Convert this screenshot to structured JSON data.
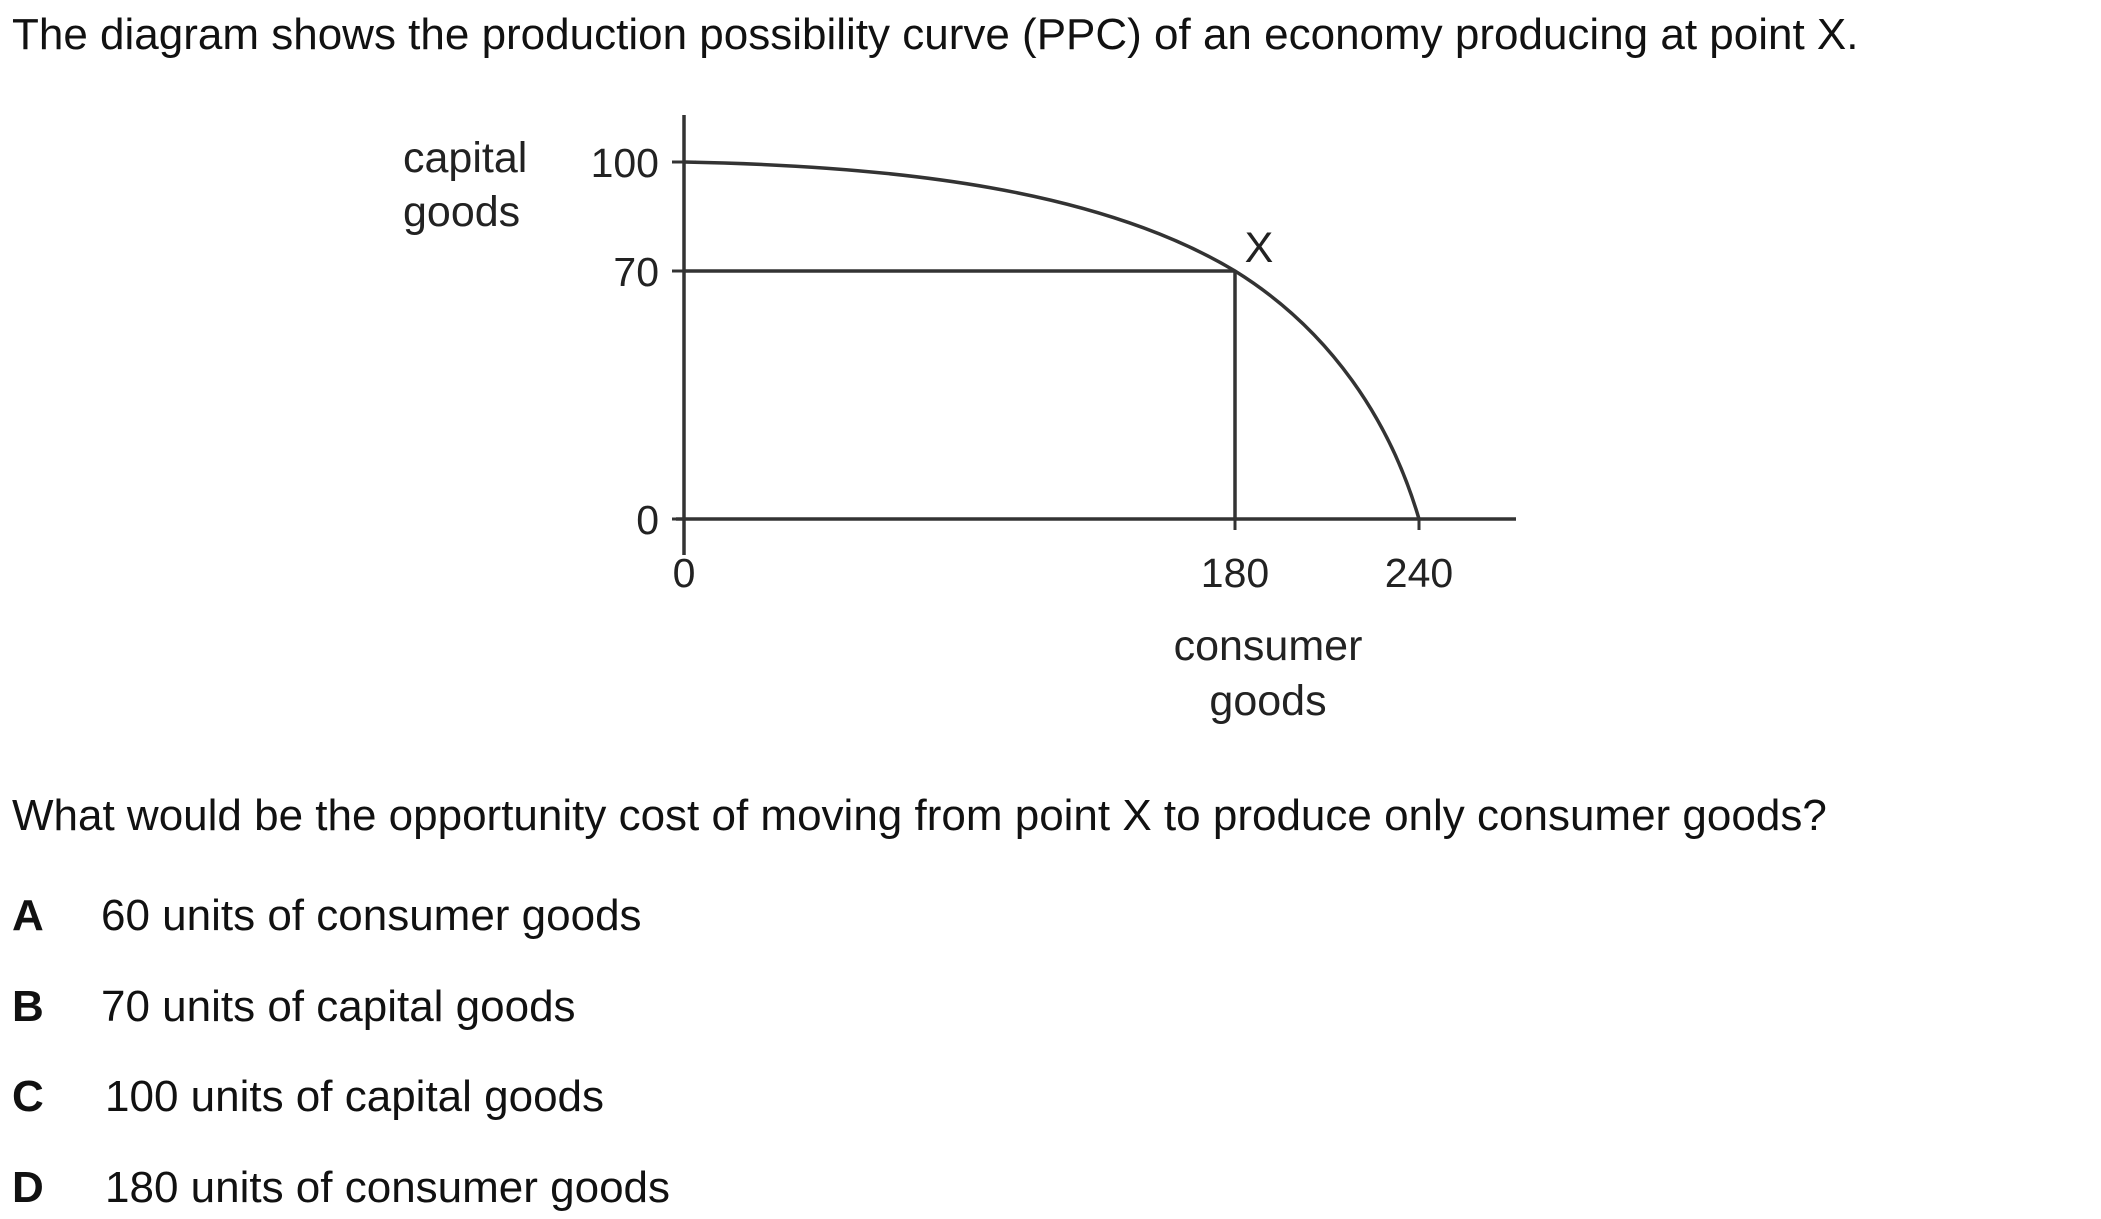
{
  "intro": "The diagram shows the production possibility curve (PPC) of an economy producing at point X.",
  "question": "What would be the opportunity cost of moving from point X to produce only consumer goods?",
  "options": [
    {
      "letter": "A",
      "text": "60 units of consumer goods"
    },
    {
      "letter": "B",
      "text": "70 units of capital goods"
    },
    {
      "letter": "C",
      "text": "100 units of capital goods"
    },
    {
      "letter": "D",
      "text": "180 units of consumer goods"
    }
  ],
  "chart_data": {
    "type": "line",
    "ylabel_lines": [
      "capital",
      "goods"
    ],
    "xlabel_lines": [
      "consumer",
      "goods"
    ],
    "y_ticks": [
      "100",
      "70",
      "0"
    ],
    "x_ticks": [
      "0",
      "180",
      "240"
    ],
    "point_label": "X",
    "point": {
      "x": 180,
      "y": 70
    },
    "curve_intercepts": {
      "capital_goods_max": 100,
      "consumer_goods_max": 240
    }
  }
}
